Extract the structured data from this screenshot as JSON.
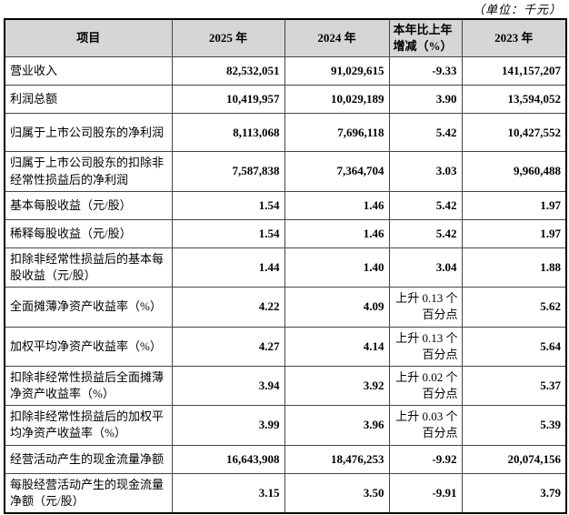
{
  "unit_note": "（单位：千元）",
  "table": {
    "headers": {
      "item": "项目",
      "y2025": "2025 年",
      "y2024": "2024 年",
      "change": "本年比上年\n增减（%）",
      "y2023": "2023 年"
    },
    "rows": [
      {
        "label": "营业收入",
        "y2025": "82,532,051",
        "y2024": "91,029,615",
        "change": "-9.33",
        "y2023": "141,157,207",
        "tall": false
      },
      {
        "label": "利润总额",
        "y2025": "10,419,957",
        "y2024": "10,029,189",
        "change": "3.90",
        "y2023": "13,594,052",
        "tall": false
      },
      {
        "label": "归属于上市公司股东的净利润",
        "y2025": "8,113,068",
        "y2024": "7,696,118",
        "change": "5.42",
        "y2023": "10,427,552",
        "tall": true
      },
      {
        "label": "归属于上市公司股东的扣除非经常性损益后的净利润",
        "y2025": "7,587,838",
        "y2024": "7,364,704",
        "change": "3.03",
        "y2023": "9,960,488",
        "tall": true
      },
      {
        "label": "基本每股收益（元/股）",
        "y2025": "1.54",
        "y2024": "1.46",
        "change": "5.42",
        "y2023": "1.97",
        "tall": false
      },
      {
        "label": "稀释每股收益（元/股）",
        "y2025": "1.54",
        "y2024": "1.46",
        "change": "5.42",
        "y2023": "1.97",
        "tall": false
      },
      {
        "label": "扣除非经常性损益后的基本每股收益（元/股）",
        "y2025": "1.44",
        "y2024": "1.40",
        "change": "3.04",
        "y2023": "1.88",
        "tall": true
      },
      {
        "label": "全面摊薄净资产收益率（%）",
        "y2025": "4.22",
        "y2024": "4.09",
        "change": "上升 0.13 个\n百分点",
        "y2023": "5.62",
        "tall": false
      },
      {
        "label": "加权平均净资产收益率（%）",
        "y2025": "4.27",
        "y2024": "4.14",
        "change": "上升 0.13 个\n百分点",
        "y2023": "5.64",
        "tall": false
      },
      {
        "label": "扣除非经常性损益后全面摊薄净资产收益率（%）",
        "y2025": "3.94",
        "y2024": "3.92",
        "change": "上升 0.02 个\n百分点",
        "y2023": "5.37",
        "tall": true
      },
      {
        "label": "扣除非经常性损益后的加权平均净资产收益率（%）",
        "y2025": "3.99",
        "y2024": "3.96",
        "change": "上升 0.03 个\n百分点",
        "y2023": "5.39",
        "tall": true
      },
      {
        "label": "经营活动产生的现金流量净额",
        "y2025": "16,643,908",
        "y2024": "18,476,253",
        "change": "-9.92",
        "y2023": "20,074,156",
        "tall": false
      },
      {
        "label": "每股经营活动产生的现金流量净额（元/股）",
        "y2025": "3.15",
        "y2024": "3.50",
        "change": "-9.91",
        "y2023": "3.79",
        "tall": true
      }
    ]
  },
  "colors": {
    "header_bg": "#d6d6d6",
    "border": "#454545",
    "outer_border": "#000000",
    "text": "#000000"
  }
}
